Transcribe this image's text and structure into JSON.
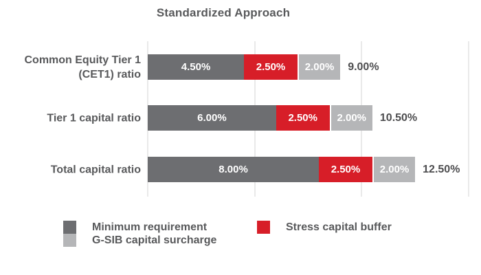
{
  "title": "Standardized Approach",
  "chart_data": {
    "type": "bar",
    "orientation": "horizontal",
    "stacked": true,
    "title": "Standardized Approach",
    "categories": [
      "Common Equity Tier 1 (CET1) ratio",
      "Tier 1 capital ratio",
      "Total capital ratio"
    ],
    "category_lines": [
      [
        "Common Equity Tier 1",
        "(CET1) ratio"
      ],
      [
        "Tier 1 capital ratio"
      ],
      [
        "Total capital ratio"
      ]
    ],
    "xlim": [
      0,
      15
    ],
    "gridline_values": [
      0,
      5,
      10,
      15
    ],
    "grid": true,
    "legend_position": "bottom",
    "series": [
      {
        "name": "Minimum requirement",
        "color": "#6d6e71",
        "values": [
          4.5,
          6,
          8
        ],
        "labels": [
          "4.50%",
          "6.00%",
          "8.00%"
        ]
      },
      {
        "name": "Stress capital buffer",
        "color": "#d71e28",
        "values": [
          2.5,
          2.5,
          2.5
        ],
        "labels": [
          "2.50%",
          "2.50%",
          "2.50%"
        ]
      },
      {
        "name": "G-SIB capital surcharge",
        "color": "#b5b6b8",
        "values": [
          2,
          2,
          2
        ],
        "labels": [
          "2.00%",
          "2.00%",
          "2.00%"
        ]
      }
    ],
    "totals": [
      9,
      10.5,
      12.5
    ],
    "total_labels": [
      "9.00%",
      "10.50%",
      "12.50%"
    ]
  },
  "legend": {
    "columns": [
      {
        "items": [
          {
            "label": "Minimum requirement",
            "color": "#6d6e71"
          },
          {
            "label": "G-SIB capital surcharge",
            "color": "#b5b6b8"
          }
        ]
      },
      {
        "items": [
          {
            "label": "Stress capital buffer",
            "color": "#d71e28"
          }
        ]
      }
    ]
  },
  "colors": {
    "minimum_requirement": "#6d6e71",
    "stress_capital_buffer": "#d71e28",
    "gsib_capital_surcharge": "#b5b6b8",
    "gridline": "#e9e9e9",
    "label_text": "#58595b",
    "total_text": "#4d4d4f",
    "segment_label_text": "#ffffff",
    "background": "#ffffff"
  }
}
